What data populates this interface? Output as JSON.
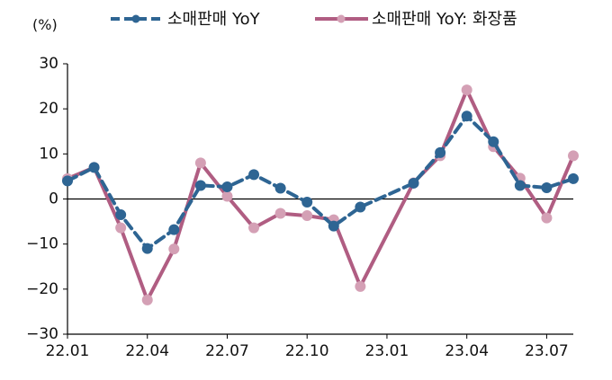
{
  "chart_data": {
    "type": "line",
    "unit_label": "(%)",
    "yticks": [
      "30",
      "20",
      "10",
      "0",
      "−10",
      "−20",
      "−30"
    ],
    "ylim": [
      -30,
      30
    ],
    "x": [
      "22.01",
      "22.02",
      "22.03",
      "22.04",
      "22.05",
      "22.06",
      "22.07",
      "22.08",
      "22.09",
      "22.10",
      "22.11",
      "22.12",
      "23.01",
      "23.02",
      "23.03",
      "23.04",
      "23.05",
      "23.06",
      "23.07",
      "23.08"
    ],
    "xtick_labels": [
      "22.01",
      "22.04",
      "22.07",
      "22.10",
      "23.01",
      "23.04",
      "23.07"
    ],
    "xtick_index": [
      0,
      3,
      6,
      9,
      12,
      15,
      18
    ],
    "grid": false,
    "legend_position": "top",
    "series": [
      {
        "name": "소매판매 YoY",
        "color": "#2e6593",
        "marker_color": "#2e6593",
        "dashed": true,
        "values": [
          4.0,
          7.0,
          -3.5,
          -11.0,
          -6.8,
          3.0,
          2.7,
          5.4,
          2.4,
          -0.7,
          -6.0,
          -1.8,
          null,
          3.5,
          10.3,
          18.4,
          12.7,
          3.0,
          2.5,
          4.5
        ]
      },
      {
        "name": "소매판매 YoY: 화장품",
        "color": "#b05d82",
        "marker_color": "#d4a0b5",
        "dashed": false,
        "values": [
          4.5,
          7.0,
          -6.4,
          -22.4,
          -11.1,
          8.0,
          0.6,
          -6.4,
          -3.2,
          -3.7,
          -4.6,
          -19.4,
          null,
          3.6,
          9.6,
          24.2,
          11.6,
          4.6,
          -4.2,
          9.6
        ]
      }
    ]
  }
}
